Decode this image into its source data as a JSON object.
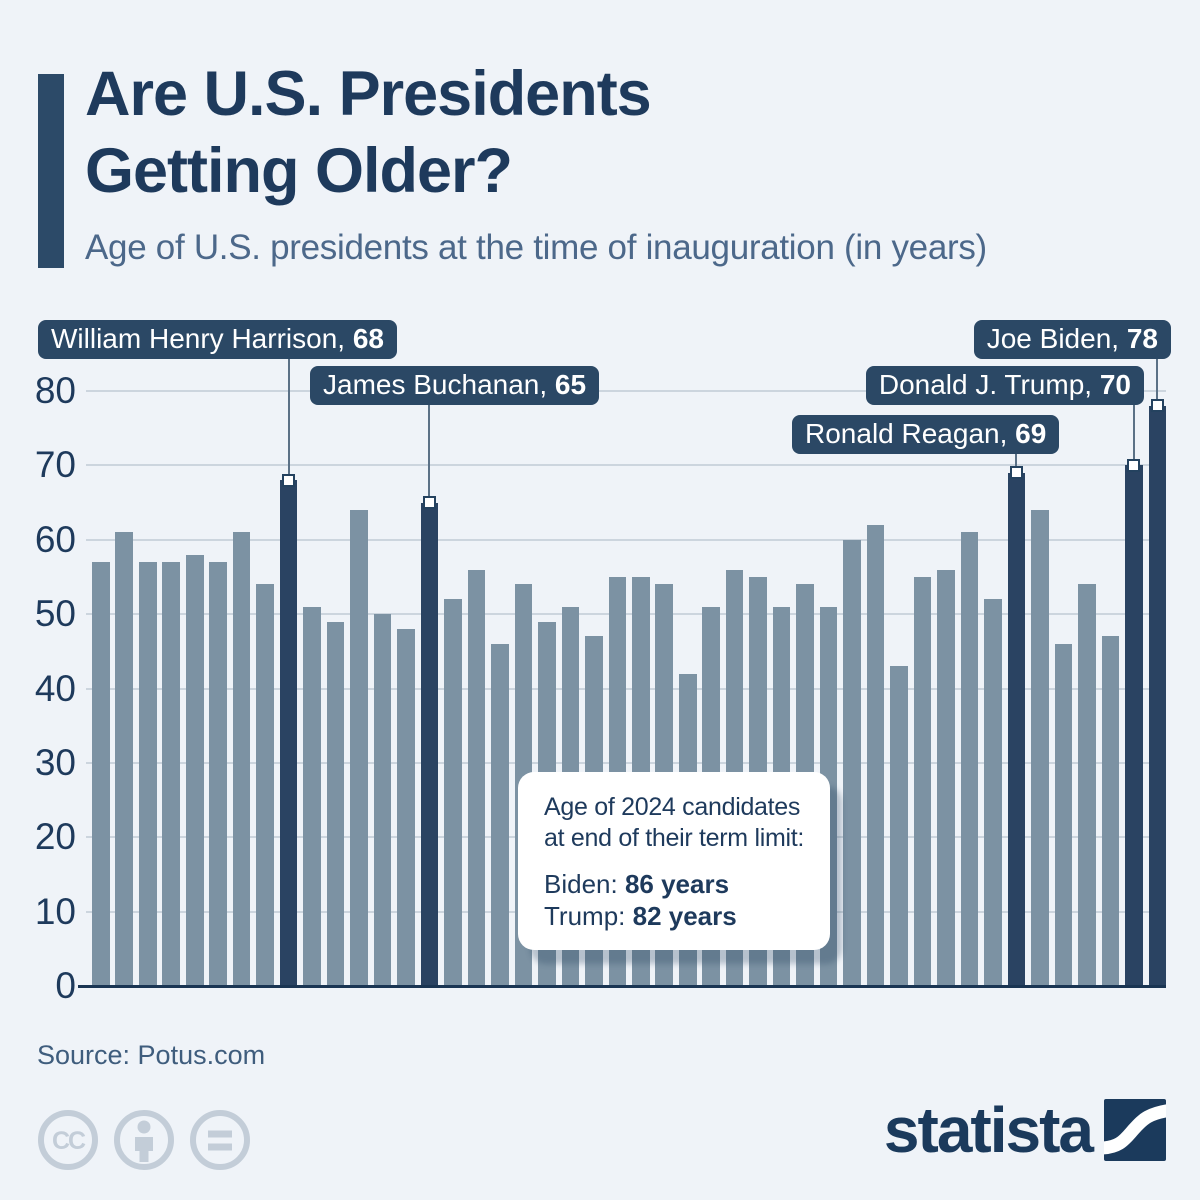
{
  "header": {
    "title": "Are U.S. Presidents\nGetting Older?",
    "subtitle": "Age of U.S. presidents at the time of inauguration (in years)"
  },
  "chart_data": {
    "type": "bar",
    "title": "Are U.S. Presidents Getting Older?",
    "subtitle": "Age of U.S. presidents at the time of inauguration (in years)",
    "xlabel": "",
    "ylabel": "",
    "values": [
      57,
      61,
      57,
      57,
      58,
      57,
      61,
      54,
      68,
      51,
      49,
      64,
      50,
      48,
      65,
      52,
      56,
      46,
      54,
      49,
      51,
      47,
      55,
      55,
      54,
      42,
      51,
      56,
      55,
      51,
      54,
      51,
      60,
      62,
      43,
      55,
      56,
      61,
      52,
      69,
      64,
      46,
      54,
      47,
      70,
      78
    ],
    "yticks": [
      0,
      10,
      20,
      30,
      40,
      50,
      60,
      70,
      80
    ],
    "ylim": [
      0,
      84
    ],
    "grid": true,
    "legend": "none",
    "bar_color": "#7c92a3",
    "highlight_color": "#2a4362",
    "highlighted_indices": [
      8,
      14,
      39,
      44,
      45
    ],
    "callouts": [
      {
        "name": "William Henry Harrison",
        "value": 68,
        "bar_index": 8
      },
      {
        "name": "James Buchanan",
        "value": 65,
        "bar_index": 14
      },
      {
        "name": "Ronald Reagan",
        "value": 69,
        "bar_index": 39
      },
      {
        "name": "Donald J. Trump",
        "value": 70,
        "bar_index": 44
      },
      {
        "name": "Joe Biden",
        "value": 78,
        "bar_index": 45
      }
    ]
  },
  "info_box": {
    "line1": "Age of 2024 candidates",
    "line2": "at end of their term limit:",
    "items": [
      {
        "label": "Biden: ",
        "value": "86 years"
      },
      {
        "label": "Trump: ",
        "value": "82 years"
      }
    ]
  },
  "footer": {
    "source": "Source: Potus.com",
    "license_icons": [
      "cc-icon",
      "person-icon",
      "equals-icon"
    ],
    "brand": "statista"
  },
  "colors": {
    "background": "#eff3f8",
    "title_navy": "#1e3a5c",
    "subtitle_blue": "#4c688a",
    "bar_gray": "#7c92a3",
    "bar_dark": "#2a4362",
    "pill_bg": "#2b4865",
    "gridline": "#ccd5de",
    "icon_gray": "#c3cdd8"
  }
}
